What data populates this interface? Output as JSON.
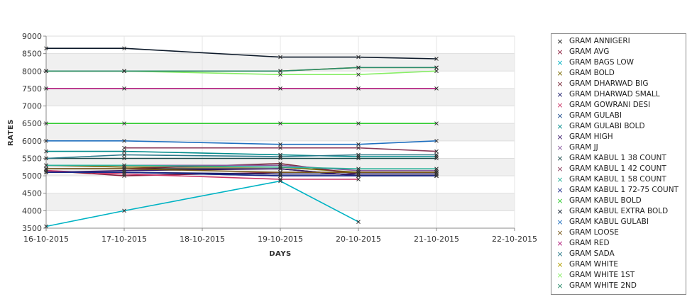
{
  "chart_data": {
    "type": "line",
    "xlabel": "DAYS",
    "ylabel": "RATES",
    "x_ticks": [
      "16-10-2015",
      "17-10-2015",
      "18-10-2015",
      "19-10-2015",
      "20-10-2015",
      "21-10-2015",
      "22-10-2015"
    ],
    "ylim": [
      3500,
      9000
    ],
    "y_ticks": [
      3500,
      4000,
      4500,
      5000,
      5500,
      6000,
      6500,
      7000,
      7500,
      8000,
      8500,
      9000
    ],
    "grid": true,
    "legend_position": "right",
    "series": [
      {
        "name": "GRAM ANNIGERI",
        "color": "#1a1a1a",
        "points": [
          [
            0,
            5200
          ],
          [
            1,
            5200
          ],
          [
            3,
            5200
          ],
          [
            4,
            5000
          ],
          [
            5,
            5000
          ]
        ]
      },
      {
        "name": "GRAM AVG",
        "color": "#8b1a3a",
        "points": [
          [
            0,
            5150
          ],
          [
            1,
            5000
          ],
          [
            3,
            5100
          ],
          [
            4,
            5100
          ],
          [
            5,
            5100
          ]
        ]
      },
      {
        "name": "GRAM BAGS LOW",
        "color": "#00b3c4",
        "points": [
          [
            0,
            3550
          ],
          [
            1,
            4000
          ],
          [
            3,
            4850
          ],
          [
            4,
            3680
          ]
        ]
      },
      {
        "name": "GRAM BOLD",
        "color": "#7a6a00",
        "points": [
          [
            0,
            5300
          ],
          [
            1,
            5250
          ],
          [
            3,
            5250
          ],
          [
            4,
            5100
          ],
          [
            5,
            5100
          ]
        ]
      },
      {
        "name": "GRAM DHARWAD BIG",
        "color": "#7a2a3a",
        "points": [
          [
            0,
            5200
          ],
          [
            1,
            5200
          ],
          [
            3,
            5350
          ],
          [
            4,
            5050
          ],
          [
            5,
            5050
          ]
        ]
      },
      {
        "name": "GRAM DHARWAD SMALL",
        "color": "#1a1a6a",
        "points": [
          [
            0,
            5100
          ],
          [
            1,
            5100
          ],
          [
            3,
            5050
          ],
          [
            4,
            5050
          ],
          [
            5,
            5050
          ]
        ]
      },
      {
        "name": "GRAM GOWRANI DESI",
        "color": "#cc3366",
        "points": [
          [
            0,
            5150
          ],
          [
            1,
            5050
          ],
          [
            3,
            4900
          ],
          [
            4,
            4900
          ]
        ]
      },
      {
        "name": "GRAM GULABI",
        "color": "#1a4a8a",
        "points": [
          [
            0,
            5100
          ],
          [
            1,
            5100
          ],
          [
            3,
            5000
          ],
          [
            4,
            5000
          ],
          [
            5,
            5000
          ]
        ]
      },
      {
        "name": "GRAM GULABI BOLD",
        "color": "#008b8b",
        "points": [
          [
            0,
            5700
          ],
          [
            1,
            5700
          ],
          [
            3,
            5600
          ],
          [
            4,
            5550
          ],
          [
            5,
            5550
          ]
        ]
      },
      {
        "name": "GRAM HIGH",
        "color": "#3a1a6a",
        "points": [
          [
            0,
            5100
          ],
          [
            1,
            5150
          ],
          [
            3,
            5200
          ],
          [
            4,
            5000
          ],
          [
            5,
            5000
          ]
        ]
      },
      {
        "name": "GRAM JJ",
        "color": "#8a5aa0",
        "points": [
          [
            0,
            5300
          ],
          [
            1,
            5300
          ],
          [
            3,
            5300
          ],
          [
            4,
            5150
          ],
          [
            5,
            5150
          ]
        ]
      },
      {
        "name": "GRAM KABUL 1 38 COUNT",
        "color": "#1a4a4a",
        "points": [
          [
            0,
            5500
          ],
          [
            1,
            5500
          ],
          [
            3,
            5500
          ],
          [
            4,
            5500
          ],
          [
            5,
            5500
          ]
        ]
      },
      {
        "name": "GRAM KABUL 1 42 COUNT",
        "color": "#8b3a5a",
        "points": [
          [
            1,
            5800
          ],
          [
            3,
            5800
          ],
          [
            4,
            5800
          ],
          [
            5,
            5700
          ]
        ]
      },
      {
        "name": "GRAM KABUL 1 58 COUNT",
        "color": "#2ab39a",
        "points": [
          [
            0,
            5300
          ],
          [
            1,
            5300
          ],
          [
            3,
            5250
          ],
          [
            4,
            5200
          ],
          [
            5,
            5200
          ]
        ]
      },
      {
        "name": "GRAM KABUL 1 72-75 COUNT",
        "color": "#1a2a8a",
        "points": [
          [
            0,
            5100
          ],
          [
            1,
            5100
          ],
          [
            3,
            5000
          ],
          [
            4,
            5000
          ],
          [
            5,
            5000
          ]
        ]
      },
      {
        "name": "GRAM KABUL BOLD",
        "color": "#33cc33",
        "points": [
          [
            0,
            6500
          ],
          [
            1,
            6500
          ],
          [
            3,
            6500
          ],
          [
            4,
            6500
          ],
          [
            5,
            6500
          ]
        ]
      },
      {
        "name": "GRAM KABUL EXTRA BOLD",
        "color": "#0d1a2a",
        "points": [
          [
            0,
            8650
          ],
          [
            1,
            8650
          ],
          [
            3,
            8400
          ],
          [
            4,
            8400
          ],
          [
            5,
            8350
          ]
        ]
      },
      {
        "name": "GRAM KABUL GULABI",
        "color": "#1f6fbf",
        "points": [
          [
            0,
            6000
          ],
          [
            1,
            6000
          ],
          [
            3,
            5900
          ],
          [
            4,
            5900
          ],
          [
            5,
            6000
          ]
        ]
      },
      {
        "name": "GRAM LOOSE",
        "color": "#7a5a1a",
        "points": [
          [
            0,
            5200
          ],
          [
            1,
            5200
          ],
          [
            3,
            5100
          ],
          [
            4,
            5100
          ],
          [
            5,
            5100
          ]
        ]
      },
      {
        "name": "GRAM RED",
        "color": "#b0197a",
        "points": [
          [
            0,
            7500
          ],
          [
            1,
            7500
          ],
          [
            3,
            7500
          ],
          [
            4,
            7500
          ],
          [
            5,
            7500
          ]
        ]
      },
      {
        "name": "GRAM SADA",
        "color": "#2a7a8a",
        "points": [
          [
            0,
            5500
          ],
          [
            1,
            5600
          ],
          [
            3,
            5550
          ],
          [
            4,
            5600
          ],
          [
            5,
            5600
          ]
        ]
      },
      {
        "name": "GRAM WHITE",
        "color": "#b3a000",
        "points": [
          [
            0,
            8000
          ],
          [
            1,
            8000
          ],
          [
            3,
            8000
          ],
          [
            4,
            8100
          ],
          [
            5,
            8100
          ]
        ]
      },
      {
        "name": "GRAM WHITE 1ST",
        "color": "#88ee66",
        "points": [
          [
            0,
            8000
          ],
          [
            1,
            8000
          ],
          [
            3,
            7900
          ],
          [
            4,
            7900
          ],
          [
            5,
            8000
          ]
        ]
      },
      {
        "name": "GRAM WHITE 2ND",
        "color": "#2a8a6a",
        "points": [
          [
            0,
            8000
          ],
          [
            1,
            8000
          ],
          [
            3,
            8000
          ],
          [
            4,
            8100
          ],
          [
            5,
            8100
          ]
        ]
      }
    ]
  }
}
